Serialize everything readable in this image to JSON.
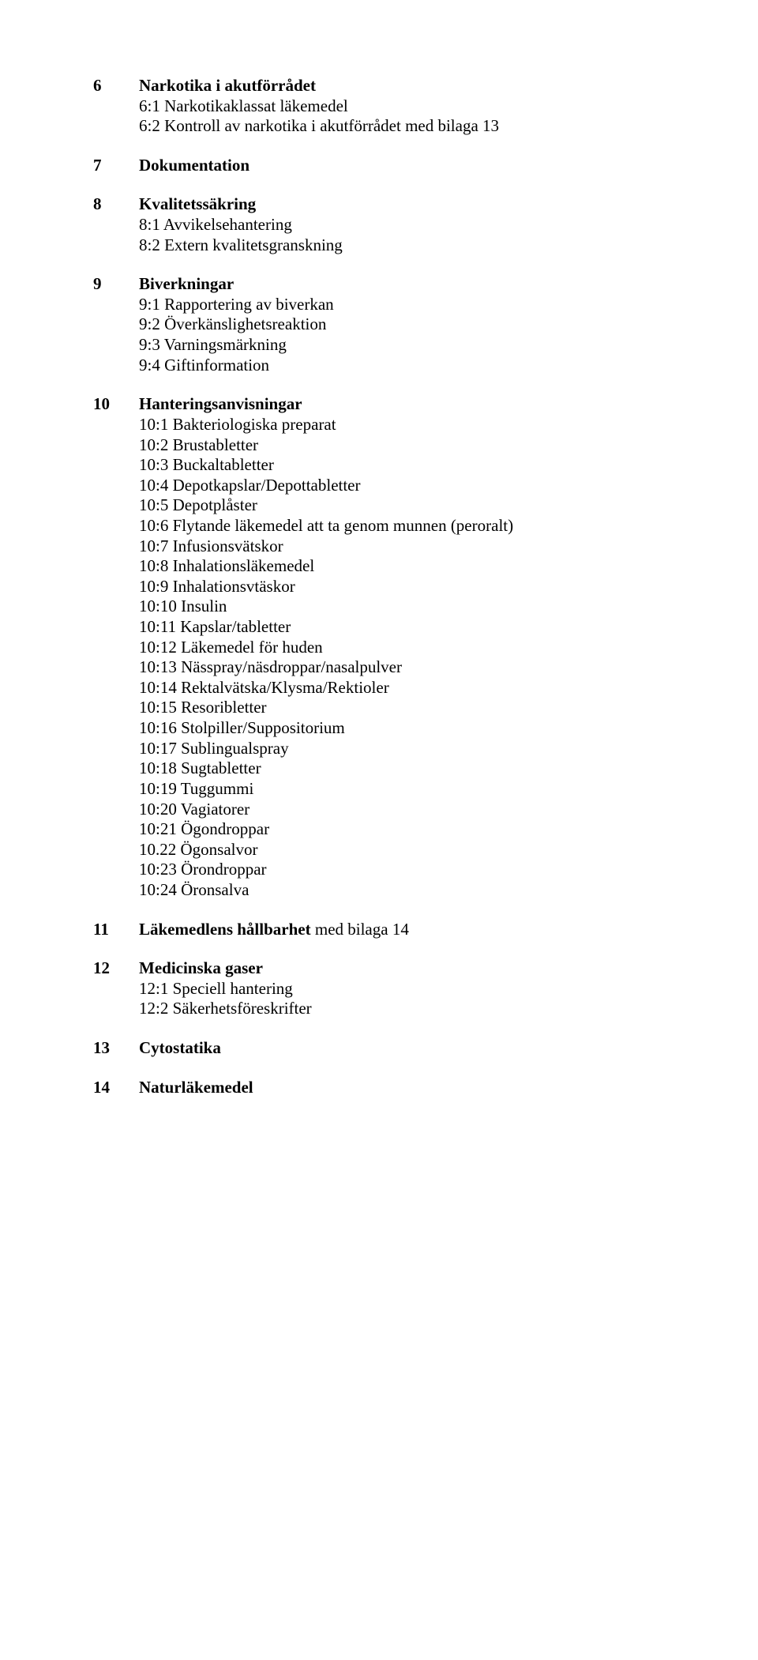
{
  "sections": [
    {
      "num": "6",
      "title": "Narkotika i akutförrådet",
      "title_suffix": "",
      "subs": [
        "6:1 Narkotikaklassat läkemedel",
        "6:2 Kontroll av narkotika i akutförrådet med bilaga 13"
      ],
      "trailing": false
    },
    {
      "num": "7",
      "title": "Dokumentation",
      "title_suffix": "",
      "subs": [],
      "trailing": false
    },
    {
      "num": "8",
      "title": "Kvalitetssäkring",
      "title_suffix": "",
      "subs": [
        "8:1 Avvikelsehantering",
        "8:2 Extern kvalitetsgranskning"
      ],
      "trailing": false
    },
    {
      "num": "9",
      "title": "Biverkningar",
      "title_suffix": "",
      "subs": [
        "9:1 Rapportering av biverkan",
        "9:2 Överkänslighetsreaktion",
        "9:3 Varningsmärkning",
        "9:4 Giftinformation"
      ],
      "trailing": false
    },
    {
      "num": "10",
      "title": "Hanteringsanvisningar",
      "title_suffix": "",
      "subs": [
        "10:1 Bakteriologiska preparat",
        "10:2 Brustabletter",
        "10:3 Buckaltabletter",
        "10:4 Depotkapslar/Depottabletter",
        "10:5 Depotplåster",
        "10:6 Flytande läkemedel att ta genom munnen (peroralt)",
        "10:7 Infusionsvätskor",
        "10:8 Inhalationsläkemedel",
        "10:9 Inhalationsvtäskor",
        "10:10 Insulin",
        "10:11 Kapslar/tabletter",
        "10:12 Läkemedel för huden",
        "10:13 Nässpray/näsdroppar/nasalpulver",
        "10:14 Rektalvätska/Klysma/Rektioler",
        "10:15 Resoribletter",
        "10:16 Stolpiller/Suppositorium",
        "10:17 Sublingualspray",
        "10:18 Sugtabletter",
        "10:19 Tuggummi",
        "10:20 Vagiatorer",
        "10:21 Ögondroppar",
        "10.22 Ögonsalvor",
        "10:23 Örondroppar",
        "10:24 Öronsalva"
      ],
      "trailing": false
    },
    {
      "num": "11",
      "title": "Läkemedlens hållbarhet",
      "title_suffix": " med bilaga 14",
      "subs": [],
      "trailing": false
    },
    {
      "num": "12",
      "title": "Medicinska gaser",
      "title_suffix": "",
      "subs": [
        "12:1 Speciell hantering",
        "12:2 Säkerhetsföreskrifter"
      ],
      "trailing": false
    },
    {
      "num": "13",
      "title": "Cytostatika",
      "title_suffix": "",
      "subs": [],
      "trailing": false
    },
    {
      "num": "14",
      "title": "Naturläkemedel",
      "title_suffix": "",
      "subs": [],
      "trailing": false
    }
  ]
}
